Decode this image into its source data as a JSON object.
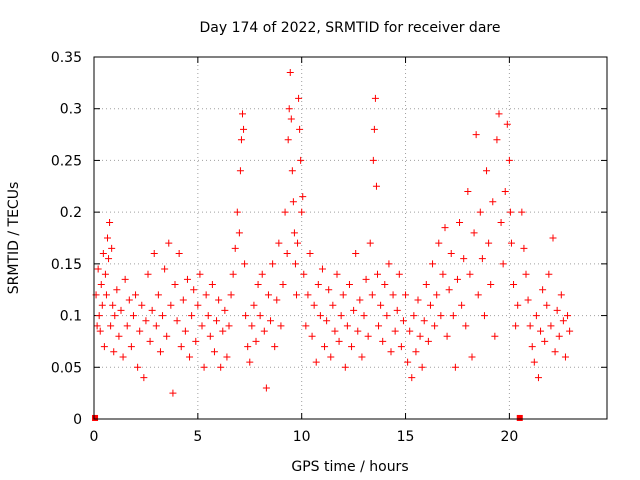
{
  "chart_data": {
    "type": "scatter",
    "title": "Day 174 of 2022, SRMTID for receiver dare",
    "xlabel": "GPS time / hours",
    "ylabel": "SRMTID / TECUs",
    "xlim": [
      0,
      24.7
    ],
    "ylim": [
      0,
      0.35
    ],
    "xticks": [
      0,
      5,
      10,
      15,
      20
    ],
    "xtick_labels": [
      "0",
      "5",
      "10",
      "15",
      "20"
    ],
    "yticks": [
      0,
      0.05,
      0.1,
      0.15,
      0.2,
      0.25,
      0.3,
      0.35
    ],
    "ytick_labels": [
      "0",
      "0.05",
      "0.1",
      "0.15",
      "0.2",
      "0.25",
      "0.3",
      "0.35"
    ],
    "grid": true,
    "marker": "+",
    "color": "#ff0000",
    "series": [
      {
        "name": "SRMTID",
        "points": [
          [
            0.05,
            0.001
          ],
          [
            0.1,
            0.12
          ],
          [
            0.15,
            0.09
          ],
          [
            0.2,
            0.145
          ],
          [
            0.25,
            0.1
          ],
          [
            0.3,
            0.085
          ],
          [
            0.35,
            0.13
          ],
          [
            0.4,
            0.11
          ],
          [
            0.45,
            0.16
          ],
          [
            0.5,
            0.07
          ],
          [
            0.55,
            0.14
          ],
          [
            0.6,
            0.12
          ],
          [
            0.65,
            0.175
          ],
          [
            0.7,
            0.155
          ],
          [
            0.75,
            0.19
          ],
          [
            0.8,
            0.09
          ],
          [
            0.85,
            0.165
          ],
          [
            0.9,
            0.11
          ],
          [
            0.95,
            0.065
          ],
          [
            1.0,
            0.1
          ],
          [
            1.1,
            0.125
          ],
          [
            1.2,
            0.08
          ],
          [
            1.3,
            0.105
          ],
          [
            1.4,
            0.06
          ],
          [
            1.5,
            0.135
          ],
          [
            1.6,
            0.09
          ],
          [
            1.7,
            0.115
          ],
          [
            1.8,
            0.07
          ],
          [
            1.9,
            0.1
          ],
          [
            2.0,
            0.12
          ],
          [
            2.1,
            0.05
          ],
          [
            2.2,
            0.085
          ],
          [
            2.3,
            0.11
          ],
          [
            2.4,
            0.04
          ],
          [
            2.5,
            0.095
          ],
          [
            2.6,
            0.14
          ],
          [
            2.7,
            0.075
          ],
          [
            2.8,
            0.105
          ],
          [
            2.9,
            0.16
          ],
          [
            3.0,
            0.09
          ],
          [
            3.1,
            0.12
          ],
          [
            3.2,
            0.065
          ],
          [
            3.3,
            0.1
          ],
          [
            3.4,
            0.145
          ],
          [
            3.5,
            0.08
          ],
          [
            3.6,
            0.17
          ],
          [
            3.7,
            0.11
          ],
          [
            3.8,
            0.025
          ],
          [
            3.9,
            0.13
          ],
          [
            4.0,
            0.095
          ],
          [
            4.1,
            0.16
          ],
          [
            4.2,
            0.07
          ],
          [
            4.3,
            0.115
          ],
          [
            4.4,
            0.085
          ],
          [
            4.5,
            0.135
          ],
          [
            4.6,
            0.06
          ],
          [
            4.7,
            0.1
          ],
          [
            4.8,
            0.125
          ],
          [
            4.9,
            0.075
          ],
          [
            5.0,
            0.11
          ],
          [
            5.1,
            0.14
          ],
          [
            5.2,
            0.09
          ],
          [
            5.3,
            0.05
          ],
          [
            5.4,
            0.12
          ],
          [
            5.5,
            0.1
          ],
          [
            5.6,
            0.08
          ],
          [
            5.7,
            0.13
          ],
          [
            5.8,
            0.065
          ],
          [
            5.9,
            0.095
          ],
          [
            6.0,
            0.115
          ],
          [
            6.1,
            0.05
          ],
          [
            6.2,
            0.085
          ],
          [
            6.3,
            0.105
          ],
          [
            6.4,
            0.06
          ],
          [
            6.5,
            0.09
          ],
          [
            6.6,
            0.12
          ],
          [
            6.7,
            0.14
          ],
          [
            6.8,
            0.165
          ],
          [
            6.9,
            0.2
          ],
          [
            7.0,
            0.18
          ],
          [
            7.05,
            0.24
          ],
          [
            7.1,
            0.27
          ],
          [
            7.15,
            0.295
          ],
          [
            7.2,
            0.28
          ],
          [
            7.25,
            0.15
          ],
          [
            7.3,
            0.1
          ],
          [
            7.4,
            0.07
          ],
          [
            7.5,
            0.055
          ],
          [
            7.6,
            0.09
          ],
          [
            7.7,
            0.11
          ],
          [
            7.8,
            0.075
          ],
          [
            7.9,
            0.13
          ],
          [
            8.0,
            0.1
          ],
          [
            8.1,
            0.14
          ],
          [
            8.2,
            0.085
          ],
          [
            8.3,
            0.03
          ],
          [
            8.4,
            0.12
          ],
          [
            8.5,
            0.095
          ],
          [
            8.6,
            0.15
          ],
          [
            8.7,
            0.07
          ],
          [
            8.8,
            0.115
          ],
          [
            8.9,
            0.17
          ],
          [
            9.0,
            0.09
          ],
          [
            9.1,
            0.13
          ],
          [
            9.2,
            0.2
          ],
          [
            9.3,
            0.16
          ],
          [
            9.35,
            0.27
          ],
          [
            9.4,
            0.3
          ],
          [
            9.45,
            0.335
          ],
          [
            9.5,
            0.29
          ],
          [
            9.55,
            0.24
          ],
          [
            9.6,
            0.21
          ],
          [
            9.65,
            0.18
          ],
          [
            9.7,
            0.15
          ],
          [
            9.75,
            0.12
          ],
          [
            9.8,
            0.17
          ],
          [
            9.85,
            0.31
          ],
          [
            9.9,
            0.28
          ],
          [
            9.95,
            0.25
          ],
          [
            10.0,
            0.2
          ],
          [
            10.05,
            0.215
          ],
          [
            10.1,
            0.14
          ],
          [
            10.2,
            0.09
          ],
          [
            10.3,
            0.12
          ],
          [
            10.4,
            0.16
          ],
          [
            10.5,
            0.08
          ],
          [
            10.6,
            0.11
          ],
          [
            10.7,
            0.055
          ],
          [
            10.8,
            0.13
          ],
          [
            10.9,
            0.1
          ],
          [
            11.0,
            0.145
          ],
          [
            11.1,
            0.07
          ],
          [
            11.2,
            0.095
          ],
          [
            11.3,
            0.125
          ],
          [
            11.4,
            0.06
          ],
          [
            11.5,
            0.11
          ],
          [
            11.6,
            0.085
          ],
          [
            11.7,
            0.14
          ],
          [
            11.8,
            0.075
          ],
          [
            11.9,
            0.1
          ],
          [
            12.0,
            0.12
          ],
          [
            12.1,
            0.05
          ],
          [
            12.2,
            0.09
          ],
          [
            12.3,
            0.13
          ],
          [
            12.4,
            0.07
          ],
          [
            12.5,
            0.105
          ],
          [
            12.6,
            0.16
          ],
          [
            12.7,
            0.085
          ],
          [
            12.8,
            0.115
          ],
          [
            12.9,
            0.06
          ],
          [
            13.0,
            0.1
          ],
          [
            13.1,
            0.135
          ],
          [
            13.2,
            0.08
          ],
          [
            13.3,
            0.17
          ],
          [
            13.4,
            0.12
          ],
          [
            13.45,
            0.25
          ],
          [
            13.5,
            0.28
          ],
          [
            13.55,
            0.31
          ],
          [
            13.6,
            0.225
          ],
          [
            13.65,
            0.14
          ],
          [
            13.7,
            0.09
          ],
          [
            13.8,
            0.11
          ],
          [
            13.9,
            0.075
          ],
          [
            14.0,
            0.13
          ],
          [
            14.1,
            0.1
          ],
          [
            14.2,
            0.15
          ],
          [
            14.3,
            0.065
          ],
          [
            14.4,
            0.12
          ],
          [
            14.5,
            0.085
          ],
          [
            14.6,
            0.105
          ],
          [
            14.7,
            0.14
          ],
          [
            14.8,
            0.07
          ],
          [
            14.9,
            0.095
          ],
          [
            15.0,
            0.12
          ],
          [
            15.1,
            0.055
          ],
          [
            15.2,
            0.085
          ],
          [
            15.3,
            0.04
          ],
          [
            15.4,
            0.1
          ],
          [
            15.5,
            0.065
          ],
          [
            15.6,
            0.115
          ],
          [
            15.7,
            0.08
          ],
          [
            15.8,
            0.05
          ],
          [
            15.9,
            0.095
          ],
          [
            16.0,
            0.13
          ],
          [
            16.1,
            0.075
          ],
          [
            16.2,
            0.11
          ],
          [
            16.3,
            0.15
          ],
          [
            16.4,
            0.09
          ],
          [
            16.5,
            0.12
          ],
          [
            16.6,
            0.17
          ],
          [
            16.7,
            0.1
          ],
          [
            16.8,
            0.14
          ],
          [
            16.9,
            0.185
          ],
          [
            17.0,
            0.08
          ],
          [
            17.1,
            0.125
          ],
          [
            17.2,
            0.16
          ],
          [
            17.3,
            0.1
          ],
          [
            17.4,
            0.05
          ],
          [
            17.5,
            0.135
          ],
          [
            17.6,
            0.19
          ],
          [
            17.7,
            0.11
          ],
          [
            17.8,
            0.155
          ],
          [
            17.9,
            0.09
          ],
          [
            18.0,
            0.22
          ],
          [
            18.1,
            0.14
          ],
          [
            18.2,
            0.06
          ],
          [
            18.3,
            0.18
          ],
          [
            18.4,
            0.275
          ],
          [
            18.5,
            0.12
          ],
          [
            18.6,
            0.2
          ],
          [
            18.7,
            0.155
          ],
          [
            18.8,
            0.1
          ],
          [
            18.9,
            0.24
          ],
          [
            19.0,
            0.17
          ],
          [
            19.1,
            0.13
          ],
          [
            19.2,
            0.21
          ],
          [
            19.3,
            0.08
          ],
          [
            19.4,
            0.27
          ],
          [
            19.5,
            0.295
          ],
          [
            19.6,
            0.19
          ],
          [
            19.7,
            0.15
          ],
          [
            19.8,
            0.22
          ],
          [
            19.9,
            0.285
          ],
          [
            20.0,
            0.25
          ],
          [
            20.05,
            0.2
          ],
          [
            20.1,
            0.17
          ],
          [
            20.2,
            0.13
          ],
          [
            20.3,
            0.09
          ],
          [
            20.4,
            0.11
          ],
          [
            20.5,
            0.001
          ],
          [
            20.6,
            0.2
          ],
          [
            20.7,
            0.165
          ],
          [
            20.8,
            0.14
          ],
          [
            20.9,
            0.115
          ],
          [
            21.0,
            0.09
          ],
          [
            21.1,
            0.07
          ],
          [
            21.2,
            0.055
          ],
          [
            21.3,
            0.1
          ],
          [
            21.4,
            0.04
          ],
          [
            21.5,
            0.085
          ],
          [
            21.6,
            0.125
          ],
          [
            21.7,
            0.075
          ],
          [
            21.8,
            0.11
          ],
          [
            21.9,
            0.14
          ],
          [
            22.0,
            0.09
          ],
          [
            22.1,
            0.175
          ],
          [
            22.2,
            0.065
          ],
          [
            22.3,
            0.105
          ],
          [
            22.4,
            0.08
          ],
          [
            22.5,
            0.12
          ],
          [
            22.6,
            0.095
          ],
          [
            22.7,
            0.06
          ],
          [
            22.8,
            0.1
          ],
          [
            22.9,
            0.085
          ]
        ]
      }
    ]
  }
}
